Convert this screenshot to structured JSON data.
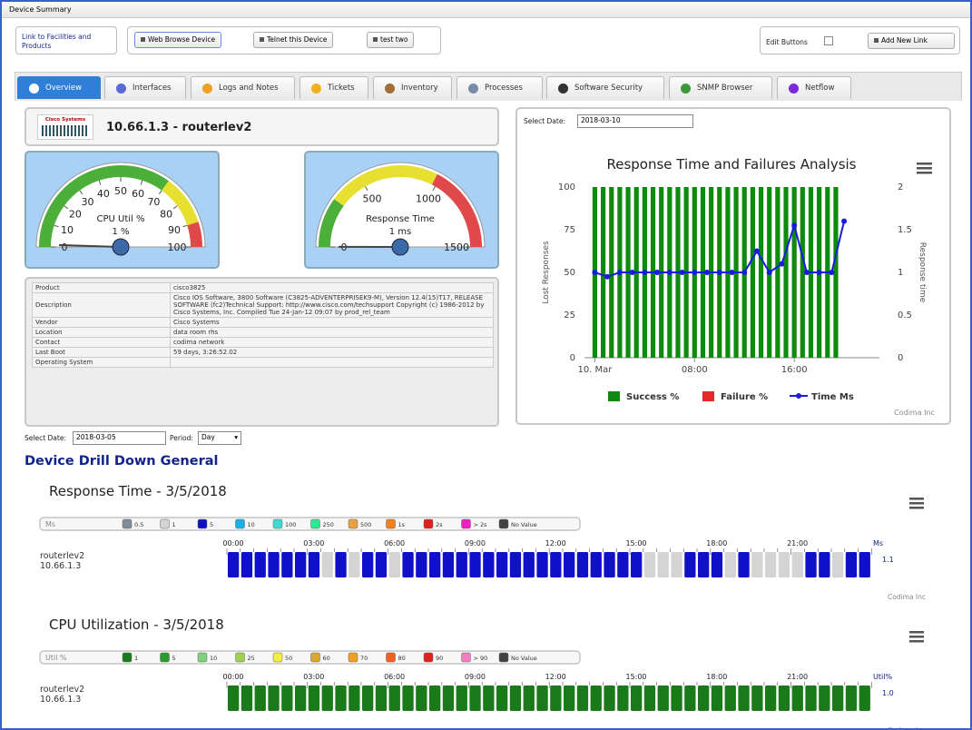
{
  "window_title": "Device Summary",
  "toolbar": {
    "link": "Link to Facilities and Products",
    "buttons": [
      "Web Browse Device",
      "Telnet this Device",
      "test two"
    ],
    "edit_buttons": "Edit Buttons",
    "add_link": "Add New Link"
  },
  "tabs": [
    "Overview",
    "Interfaces",
    "Logs and Notes",
    "Tickets",
    "Inventory",
    "Processes",
    "Software Security",
    "SNMP Browser",
    "Netflow"
  ],
  "device": {
    "logo": "Cisco Systems",
    "name": "10.66.1.3 - routerlev2"
  },
  "gauges": [
    {
      "label": "CPU Util %",
      "value": 1,
      "value_label": "1 %",
      "min": 0,
      "max": 100,
      "ticks": [
        0,
        10,
        20,
        30,
        40,
        50,
        60,
        70,
        80,
        90,
        100
      ]
    },
    {
      "label": "Response Time",
      "value": 1,
      "value_label": "1 ms",
      "min": 0,
      "max": 1500,
      "ticks": [
        0,
        500,
        1000,
        1500
      ]
    }
  ],
  "info_table": [
    [
      "Product",
      "cisco3825"
    ],
    [
      "Description",
      "Cisco IOS Software, 3800 Software (C3825-ADVENTERPRISEK9-M), Version 12.4(15)T17, RELEASE SOFTWARE (fc2)Technical Support: http://www.cisco.com/techsupport Copyright (c) 1986-2012 by Cisco Systems, Inc. Compiled Tue 24-Jan-12 09:07 by prod_rel_team"
    ],
    [
      "Vendor",
      "Cisco Systems"
    ],
    [
      "Location",
      "data room rhs"
    ],
    [
      "Contact",
      "codima network"
    ],
    [
      "Last Boot",
      "59 days, 3:26:52.02"
    ],
    [
      "Operating System"
    ]
  ],
  "filters": {
    "date_label": "Select Date:",
    "date": "2018-03-05",
    "period_label": "Period:",
    "period": "Day"
  },
  "chart_data": {
    "type": "bar",
    "select_date_label": "Select Date:",
    "select_date": "2018-03-10",
    "title": "Response Time and Failures Analysis",
    "y_label": "Lost Responses",
    "y2_label": "Response time",
    "credit": "Codima Inc",
    "xlim": [
      -50,
      1370
    ],
    "xticks": [
      {
        "value": 0,
        "label": "10. Mar"
      },
      {
        "value": 480,
        "label": "08:00"
      },
      {
        "value": 960,
        "label": "16:00"
      }
    ],
    "ylim": [
      0,
      100
    ],
    "yticks": [
      0,
      25,
      50,
      75,
      100
    ],
    "y2lim": [
      0,
      2
    ],
    "y2ticks": [
      0,
      0.5,
      1,
      1.5,
      2
    ],
    "series": [
      {
        "name": "Success %",
        "color": "#0e8a0e",
        "type": "bar",
        "x": [
          0,
          40,
          80,
          120,
          160,
          200,
          240,
          280,
          320,
          360,
          400,
          440,
          480,
          520,
          560,
          600,
          640,
          680,
          720,
          760,
          800,
          840,
          880,
          920,
          960,
          1000,
          1040,
          1080,
          1120,
          1160
        ],
        "values": [
          100,
          100,
          100,
          100,
          100,
          100,
          100,
          100,
          100,
          100,
          100,
          100,
          100,
          100,
          100,
          100,
          100,
          100,
          100,
          100,
          100,
          100,
          100,
          100,
          100,
          100,
          100,
          100,
          100,
          100
        ]
      },
      {
        "name": "Failure %",
        "color": "#e82828",
        "type": "bar",
        "x": [],
        "values": []
      },
      {
        "name": "Time Ms",
        "color": "#1a1ae0",
        "type": "line",
        "axis": "y2",
        "x": [
          0,
          60,
          120,
          180,
          240,
          300,
          360,
          420,
          480,
          540,
          600,
          660,
          720,
          780,
          840,
          900,
          960,
          1020,
          1080,
          1140,
          1200
        ],
        "values": [
          1,
          0.95,
          1,
          1,
          1,
          1,
          1,
          1,
          1,
          1,
          1,
          1,
          1,
          1.25,
          1,
          1.1,
          1.55,
          1,
          1,
          1,
          1.6
        ]
      }
    ]
  },
  "drill_title": "Device Drill Down General",
  "strips": [
    {
      "title": "Response Time - 3/5/2018",
      "legend_label": "Ms",
      "legend": [
        {
          "label": "0.5",
          "color": "#7f8c9c"
        },
        {
          "label": "1",
          "color": "#d4d4d4"
        },
        {
          "label": "5",
          "color": "#1010c8"
        },
        {
          "label": "10",
          "color": "#18b0e8"
        },
        {
          "label": "100",
          "color": "#40d8d0"
        },
        {
          "label": "250",
          "color": "#30e890"
        },
        {
          "label": "500",
          "color": "#e8a040"
        },
        {
          "label": "1s",
          "color": "#f08020"
        },
        {
          "label": "2s",
          "color": "#e02020"
        },
        {
          "label": "> 2s",
          "color": "#f020c0"
        },
        {
          "label": "No Value",
          "color": "#404040"
        }
      ],
      "hours": [
        "00:00",
        "03:00",
        "06:00",
        "09:00",
        "12:00",
        "15:00",
        "18:00",
        "21:00"
      ],
      "row_name": "routerlev2",
      "row_ip": "10.66.1.3",
      "unit": "Ms",
      "average": "1.1",
      "credit": "Codima Inc",
      "cells": [
        2,
        2,
        2,
        2,
        2,
        2,
        2,
        1,
        2,
        1,
        2,
        2,
        1,
        2,
        2,
        2,
        2,
        2,
        2,
        2,
        2,
        2,
        2,
        2,
        2,
        2,
        2,
        2,
        2,
        2,
        2,
        1,
        1,
        1,
        2,
        2,
        2,
        1,
        2,
        1,
        1,
        1,
        1,
        2,
        2,
        1,
        2,
        2
      ]
    },
    {
      "title": "CPU Utilization - 3/5/2018",
      "legend_label": "Util %",
      "legend": [
        {
          "label": "1",
          "color": "#1a7a1a"
        },
        {
          "label": "5",
          "color": "#2a9a2a"
        },
        {
          "label": "10",
          "color": "#80d080"
        },
        {
          "label": "25",
          "color": "#a0d050"
        },
        {
          "label": "50",
          "color": "#f0f040"
        },
        {
          "label": "60",
          "color": "#d8a830"
        },
        {
          "label": "70",
          "color": "#f0a020"
        },
        {
          "label": "80",
          "color": "#f06020"
        },
        {
          "label": "90",
          "color": "#e02020"
        },
        {
          "label": "> 90",
          "color": "#f080c0"
        },
        {
          "label": "No Value",
          "color": "#404040"
        }
      ],
      "hours": [
        "00:00",
        "03:00",
        "06:00",
        "09:00",
        "12:00",
        "15:00",
        "18:00",
        "21:00"
      ],
      "row_name": "routerlev2",
      "row_ip": "10.66.1.3",
      "unit": "Util%",
      "average": "1.0",
      "credit": "Codima Inc",
      "cells": [
        0,
        0,
        0,
        0,
        0,
        0,
        0,
        0,
        0,
        0,
        0,
        0,
        0,
        0,
        0,
        0,
        0,
        0,
        0,
        0,
        0,
        0,
        0,
        0,
        0,
        0,
        0,
        0,
        0,
        0,
        0,
        0,
        0,
        0,
        0,
        0,
        0,
        0,
        0,
        0,
        0,
        0,
        0,
        0,
        0,
        0,
        0,
        0
      ]
    }
  ]
}
